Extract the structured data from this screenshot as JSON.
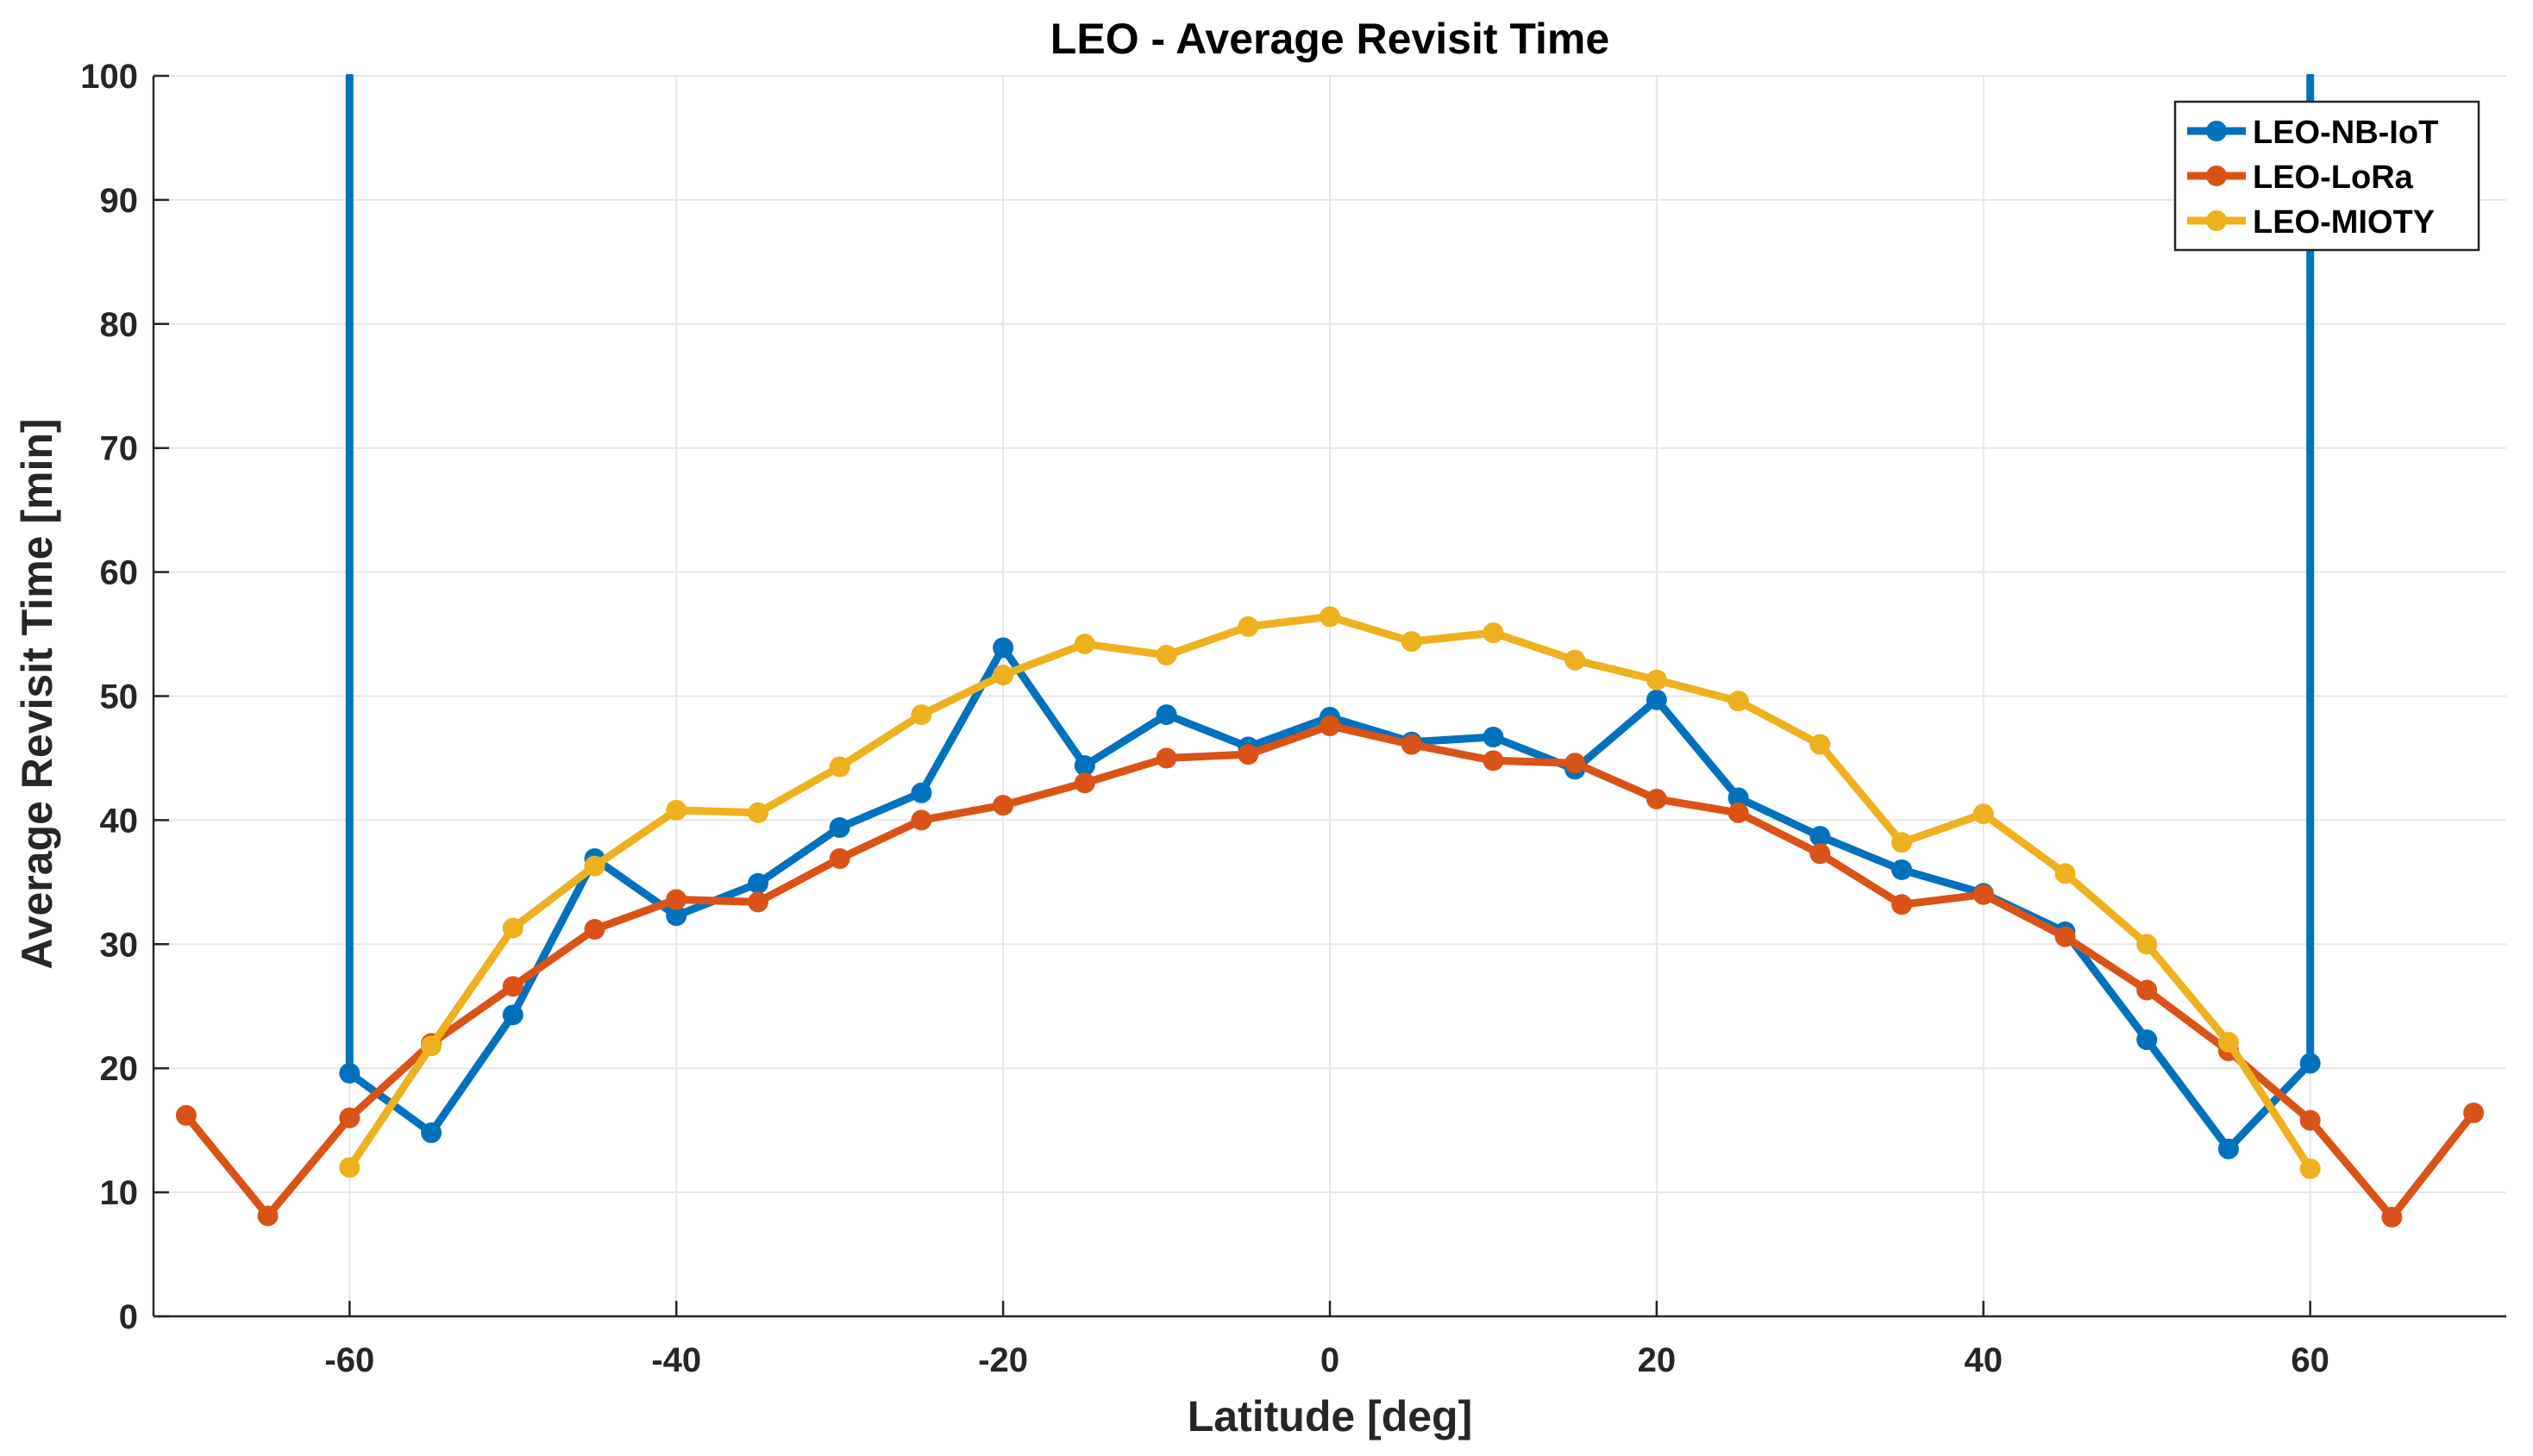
{
  "chart_data": {
    "type": "line",
    "title": "LEO - Average Revisit Time",
    "xlabel": "Latitude [deg]",
    "ylabel": "Average Revisit Time [min]",
    "xlim": [
      -72,
      72
    ],
    "ylim": [
      0,
      100
    ],
    "xticks": [
      -60,
      -40,
      -20,
      0,
      20,
      40,
      60
    ],
    "yticks": [
      0,
      10,
      20,
      30,
      40,
      50,
      60,
      70,
      80,
      90,
      100
    ],
    "xtick_labels": [
      "-60",
      "-40",
      "-20",
      "0",
      "20",
      "40",
      "60"
    ],
    "ytick_labels": [
      "0",
      "10",
      "20",
      "30",
      "40",
      "50",
      "60",
      "70",
      "80",
      "90",
      "100"
    ],
    "grid": true,
    "legend_position": "top-right",
    "series": [
      {
        "name": "LEO-NB-IoT",
        "color": "#0072BD",
        "x": [
          -60,
          -60,
          -55,
          -50,
          -45,
          -40,
          -35,
          -30,
          -25,
          -20,
          -15,
          -10,
          -5,
          0,
          5,
          10,
          15,
          20,
          25,
          30,
          35,
          40,
          45,
          50,
          55,
          60,
          60
        ],
        "y": [
          100,
          19.6,
          14.8,
          24.3,
          36.9,
          32.3,
          34.9,
          39.4,
          42.2,
          53.9,
          44.4,
          48.5,
          45.9,
          48.3,
          46.3,
          46.7,
          44.1,
          49.7,
          41.8,
          38.7,
          36.0,
          34.1,
          31.0,
          22.3,
          13.5,
          20.4,
          100
        ],
        "markers": [
          false,
          true,
          true,
          true,
          true,
          true,
          true,
          true,
          true,
          true,
          true,
          true,
          true,
          true,
          true,
          true,
          true,
          true,
          true,
          true,
          true,
          true,
          true,
          true,
          true,
          true,
          false
        ]
      },
      {
        "name": "LEO-LoRa",
        "color": "#D95319",
        "x": [
          -70,
          -65,
          -60,
          -55,
          -50,
          -45,
          -40,
          -35,
          -30,
          -25,
          -20,
          -15,
          -10,
          -5,
          0,
          5,
          10,
          15,
          20,
          25,
          30,
          35,
          40,
          45,
          50,
          55,
          60,
          65,
          70
        ],
        "y": [
          16.2,
          8.1,
          16.0,
          22.0,
          26.6,
          31.2,
          33.6,
          33.4,
          36.9,
          40.0,
          41.2,
          43.0,
          45.0,
          45.3,
          47.6,
          46.1,
          44.8,
          44.6,
          41.7,
          40.6,
          37.3,
          33.2,
          34.0,
          30.6,
          26.3,
          21.4,
          15.8,
          8.0,
          16.4
        ]
      },
      {
        "name": "LEO-MIOTY",
        "color": "#EDB120",
        "x": [
          -60,
          -55,
          -50,
          -45,
          -40,
          -35,
          -30,
          -25,
          -20,
          -15,
          -10,
          -5,
          0,
          5,
          10,
          15,
          20,
          25,
          30,
          35,
          40,
          45,
          50,
          55,
          60
        ],
        "y": [
          12.0,
          21.8,
          31.3,
          36.3,
          40.8,
          40.6,
          44.3,
          48.5,
          51.7,
          54.2,
          53.3,
          55.6,
          56.4,
          54.4,
          55.1,
          52.9,
          51.3,
          49.6,
          46.1,
          38.2,
          40.5,
          35.7,
          30.0,
          22.1,
          11.9
        ]
      }
    ]
  }
}
